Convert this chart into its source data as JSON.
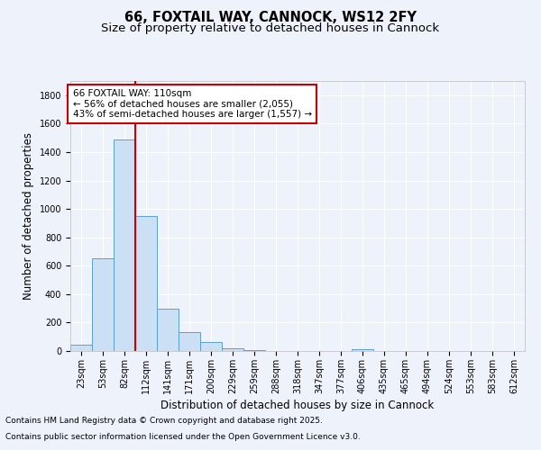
{
  "title": "66, FOXTAIL WAY, CANNOCK, WS12 2FY",
  "subtitle": "Size of property relative to detached houses in Cannock",
  "xlabel": "Distribution of detached houses by size in Cannock",
  "ylabel": "Number of detached properties",
  "categories": [
    "23sqm",
    "53sqm",
    "82sqm",
    "112sqm",
    "141sqm",
    "171sqm",
    "200sqm",
    "229sqm",
    "259sqm",
    "288sqm",
    "318sqm",
    "347sqm",
    "377sqm",
    "406sqm",
    "435sqm",
    "465sqm",
    "494sqm",
    "524sqm",
    "553sqm",
    "583sqm",
    "612sqm"
  ],
  "values": [
    45,
    650,
    1490,
    950,
    295,
    135,
    65,
    22,
    5,
    2,
    0,
    0,
    0,
    14,
    0,
    0,
    0,
    0,
    0,
    0,
    0
  ],
  "bar_color": "#cce0f5",
  "bar_edge_color": "#5a9fd4",
  "red_line_x": 2.5,
  "annotation_line1": "66 FOXTAIL WAY: 110sqm",
  "annotation_line2": "← 56% of detached houses are smaller (2,055)",
  "annotation_line3": "43% of semi-detached houses are larger (1,557) →",
  "annotation_box_color": "#ffffff",
  "annotation_box_edge": "#cc0000",
  "vline_color": "#cc0000",
  "ylim": [
    0,
    1900
  ],
  "yticks": [
    0,
    200,
    400,
    600,
    800,
    1000,
    1200,
    1400,
    1600,
    1800
  ],
  "footer_line1": "Contains HM Land Registry data © Crown copyright and database right 2025.",
  "footer_line2": "Contains public sector information licensed under the Open Government Licence v3.0.",
  "bg_color": "#eef2fb",
  "plot_bg_color": "#eef2fb",
  "title_fontsize": 10.5,
  "subtitle_fontsize": 9.5,
  "axis_label_fontsize": 8.5,
  "tick_fontsize": 7,
  "footer_fontsize": 6.5,
  "annotation_fontsize": 7.5
}
